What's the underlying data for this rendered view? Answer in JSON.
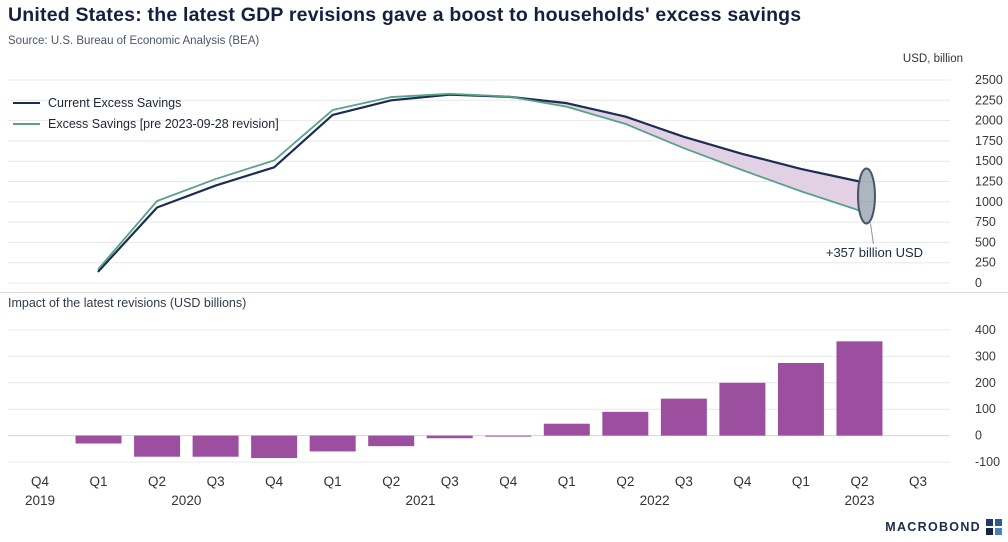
{
  "header": {
    "title": "United States: the latest GDP revisions gave a boost to households' excess savings",
    "source": "Source: U.S. Bureau of Economic Analysis (BEA)"
  },
  "colors": {
    "current_line": "#1b2e52",
    "pre_revision_line": "#58a18c",
    "revision_band": "#e2d1e5",
    "bar": "#9c4f9f",
    "grid": "#e8e8e8",
    "zero_line": "#d6d6d6",
    "ellipse_fill": "#5d6d80",
    "ellipse_stroke": "#46566b"
  },
  "chart_data": [
    {
      "type": "line",
      "ylabel": "USD, billion",
      "ylim": [
        0,
        2500
      ],
      "yticks": [
        0,
        250,
        500,
        750,
        1000,
        1250,
        1500,
        1750,
        2000,
        2250,
        2500
      ],
      "grid": true,
      "legend_position": "top-left",
      "x": [
        "Q4 2019",
        "Q1 2020",
        "Q2 2020",
        "Q3 2020",
        "Q4 2020",
        "Q1 2021",
        "Q2 2021",
        "Q3 2021",
        "Q4 2021",
        "Q1 2022",
        "Q2 2022",
        "Q3 2022",
        "Q4 2022",
        "Q1 2023",
        "Q2 2023",
        "Q3 2023"
      ],
      "series": [
        {
          "name": "Current Excess Savings",
          "color": "#1b2e52",
          "values": [
            null,
            145,
            930,
            1200,
            1425,
            2070,
            2250,
            2320,
            2294,
            2215,
            2050,
            1800,
            1590,
            1405,
            1250,
            null
          ]
        },
        {
          "name": "Excess Savings [pre 2023-09-28 revision]",
          "color": "#58a18c",
          "values": [
            null,
            175,
            1010,
            1280,
            1510,
            2130,
            2290,
            2330,
            2297,
            2170,
            1960,
            1660,
            1390,
            1130,
            893,
            null
          ]
        }
      ],
      "band": {
        "from_x": "Q4 2021",
        "to_x": "Q2 2023",
        "color": "#e2d1e5"
      },
      "annotation": {
        "text": "+357 billion USD",
        "x": "Q2 2023"
      }
    },
    {
      "type": "bar",
      "title": "Impact of the latest revisions (USD billions)",
      "ylim": [
        -100,
        400
      ],
      "yticks": [
        -100,
        0,
        100,
        200,
        300,
        400
      ],
      "categories": [
        "Q4 2019",
        "Q1 2020",
        "Q2 2020",
        "Q3 2020",
        "Q4 2020",
        "Q1 2021",
        "Q2 2021",
        "Q3 2021",
        "Q4 2021",
        "Q1 2022",
        "Q2 2022",
        "Q3 2022",
        "Q4 2022",
        "Q1 2023",
        "Q2 2023",
        "Q3 2023"
      ],
      "values": [
        null,
        -30,
        -80,
        -80,
        -85,
        -60,
        -40,
        -10,
        -3,
        45,
        90,
        140,
        200,
        275,
        357,
        null
      ],
      "color": "#9c4f9f"
    }
  ],
  "x_axis": {
    "quarter_labels": [
      "Q4",
      "Q1",
      "Q2",
      "Q3",
      "Q4",
      "Q1",
      "Q2",
      "Q3",
      "Q4",
      "Q1",
      "Q2",
      "Q3",
      "Q4",
      "Q1",
      "Q2",
      "Q3"
    ],
    "years": [
      {
        "label": "2019",
        "span": [
          0,
          0
        ]
      },
      {
        "label": "2020",
        "span": [
          1,
          4
        ]
      },
      {
        "label": "2021",
        "span": [
          5,
          8
        ]
      },
      {
        "label": "2022",
        "span": [
          9,
          12
        ]
      },
      {
        "label": "2023",
        "span": [
          13,
          15
        ]
      }
    ]
  },
  "footer": {
    "brand": "MACROBOND",
    "logo_icon": "four-squares-icon"
  }
}
